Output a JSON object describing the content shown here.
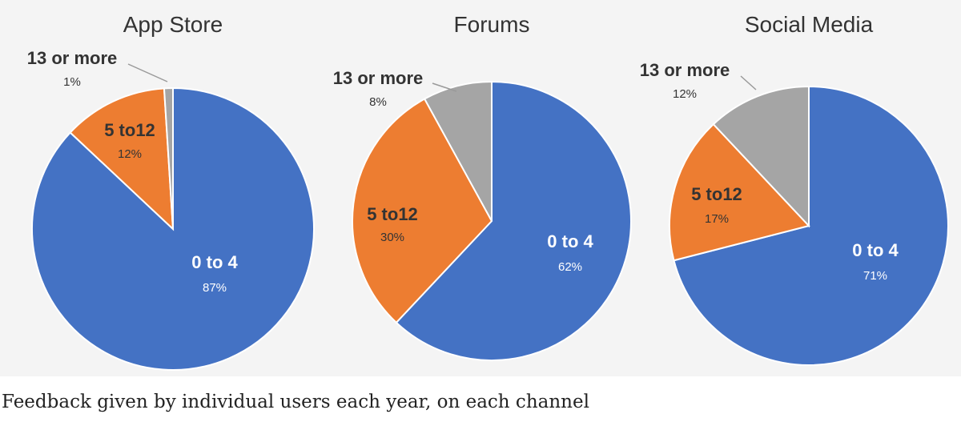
{
  "colors": {
    "blue": "#4472c4",
    "orange": "#ed7d31",
    "gray": "#a5a5a5",
    "slice_edge": "#ffffff",
    "label_dark": "#333333",
    "label_light": "#ffffff",
    "title": "#333333",
    "background": "#f4f4f4"
  },
  "chart_data": [
    {
      "type": "pie",
      "title": "App Store",
      "slices": [
        {
          "category": "0 to 4",
          "value": 87,
          "label": "0 to 4",
          "pct_label": "87%",
          "color_key": "blue",
          "text_color": "label_light"
        },
        {
          "category": "5 to12",
          "value": 12,
          "label": "5 to12",
          "pct_label": "12%",
          "color_key": "orange",
          "text_color": "label_dark"
        },
        {
          "category": "13 or more",
          "value": 1,
          "label": "13 or more",
          "pct_label": "1%",
          "color_key": "gray",
          "text_color": "label_dark"
        }
      ]
    },
    {
      "type": "pie",
      "title": "Forums",
      "slices": [
        {
          "category": "0 to 4",
          "value": 62,
          "label": "0 to 4",
          "pct_label": "62%",
          "color_key": "blue",
          "text_color": "label_light"
        },
        {
          "category": "5 to12",
          "value": 30,
          "label": "5 to12",
          "pct_label": "30%",
          "color_key": "orange",
          "text_color": "label_dark"
        },
        {
          "category": "13 or more",
          "value": 8,
          "label": "13 or more",
          "pct_label": "8%",
          "color_key": "gray",
          "text_color": "label_dark"
        }
      ]
    },
    {
      "type": "pie",
      "title": "Social Media",
      "slices": [
        {
          "category": "0 to 4",
          "value": 71,
          "label": "0 to 4",
          "pct_label": "71%",
          "color_key": "blue",
          "text_color": "label_light"
        },
        {
          "category": "5 to12",
          "value": 17,
          "label": "5 to12",
          "pct_label": "17%",
          "color_key": "orange",
          "text_color": "label_dark"
        },
        {
          "category": "13 or more",
          "value": 12,
          "label": "13 or more",
          "pct_label": "12%",
          "color_key": "gray",
          "text_color": "label_dark"
        }
      ]
    }
  ],
  "caption": "Feedback given by individual users each year, on each channel"
}
